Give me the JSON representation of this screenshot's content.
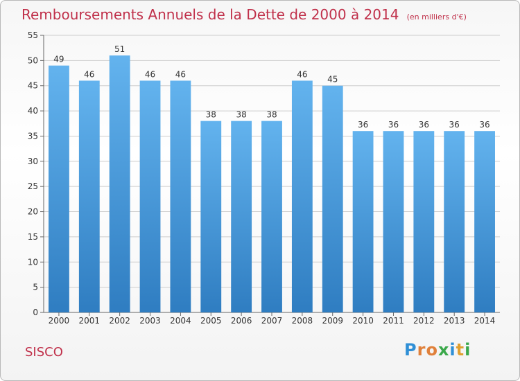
{
  "title": "Remboursements Annuels de la Dette de 2000 à 2014",
  "unit_note": "(en milliers d'€)",
  "commune": "SISCO",
  "logo": {
    "text": "Proxiti",
    "letters": [
      {
        "ch": "P",
        "color": "#2f8fd6"
      },
      {
        "ch": "r",
        "color": "#e0803a"
      },
      {
        "ch": "o",
        "color": "#e0803a"
      },
      {
        "ch": "x",
        "color": "#3aa84a"
      },
      {
        "ch": "i",
        "color": "#2f8fd6"
      },
      {
        "ch": "t",
        "color": "#e0a030"
      },
      {
        "ch": "i",
        "color": "#3aa84a"
      }
    ]
  },
  "colors": {
    "bar_top": "#63b3ee",
    "bar_bottom": "#2f7dc1",
    "title": "#c0304a",
    "grid": "#cccccc"
  },
  "chart_data": {
    "type": "bar",
    "categories": [
      "2000",
      "2001",
      "2002",
      "2003",
      "2004",
      "2005",
      "2006",
      "2007",
      "2008",
      "2009",
      "2010",
      "2011",
      "2012",
      "2013",
      "2014"
    ],
    "values": [
      49,
      46,
      51,
      46,
      46,
      38,
      38,
      38,
      46,
      45,
      36,
      36,
      36,
      36,
      36
    ],
    "ylim": [
      0,
      55
    ],
    "yticks": [
      0,
      5,
      10,
      15,
      20,
      25,
      30,
      35,
      40,
      45,
      50,
      55
    ],
    "grid": true
  }
}
